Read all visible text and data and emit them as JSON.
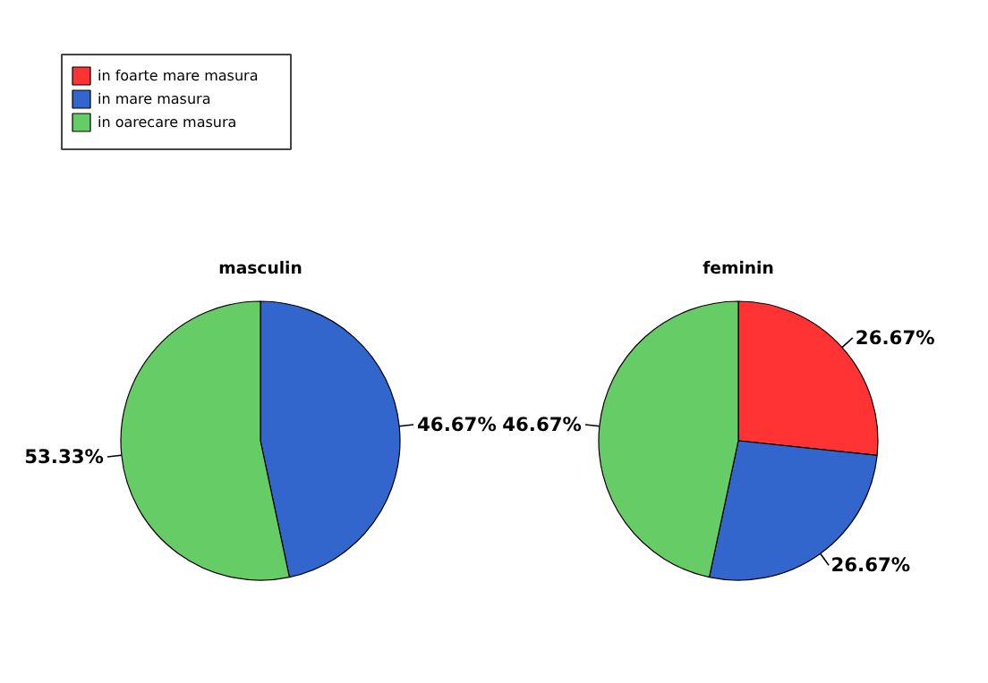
{
  "chart_data": [
    {
      "type": "pie",
      "title": "masculin",
      "categories": [
        "in foarte mare masura",
        "in mare masura",
        "in oarecare masura"
      ],
      "values": [
        0,
        46.67,
        53.33
      ],
      "colors": [
        "#ff3333",
        "#3366cc",
        "#66cc66"
      ],
      "value_labels": [
        null,
        "46.67%",
        "53.33%"
      ],
      "legend": "top left"
    },
    {
      "type": "pie",
      "title": "feminin",
      "values": [
        26.67,
        26.67,
        46.67
      ],
      "colors": [
        "#ff3333",
        "#3366cc",
        "#66cc66"
      ],
      "value_labels": [
        "26.67%",
        "26.67%",
        "46.67%"
      ]
    }
  ]
}
